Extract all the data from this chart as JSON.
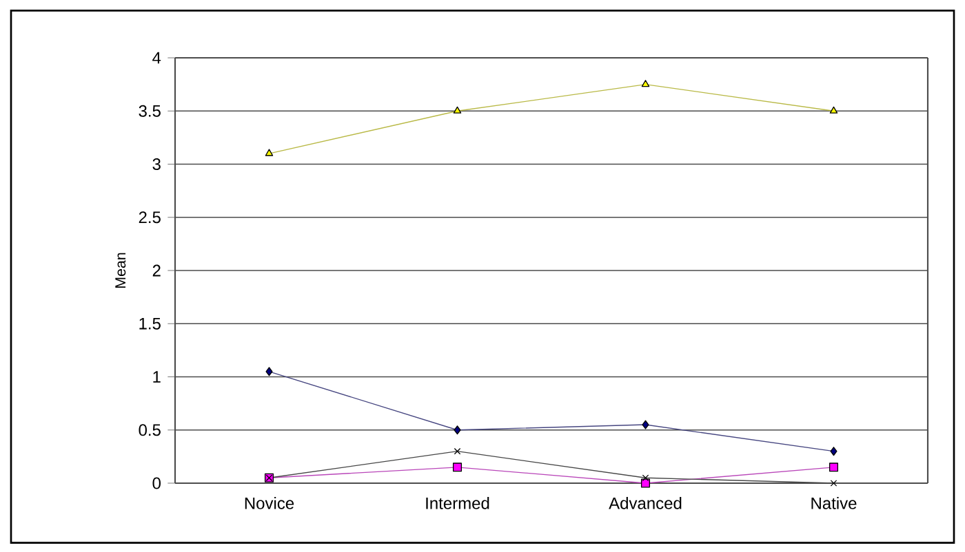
{
  "chart_data": {
    "type": "line",
    "ylabel": "Mean",
    "categories": [
      "Novice",
      "Intermed",
      "Advanced",
      "Native"
    ],
    "series": [
      {
        "color": "#000080",
        "marker": "diamond",
        "values": [
          1.05,
          0.5,
          0.55,
          0.3
        ]
      },
      {
        "color": "#ff00ff",
        "marker": "square",
        "values": [
          0.05,
          0.15,
          0,
          0.15
        ]
      },
      {
        "color": "#ffff00",
        "marker": "triangle",
        "values": [
          3.1,
          3.5,
          3.75,
          3.5
        ]
      },
      {
        "color": "#000000",
        "marker": "cross",
        "values": [
          0.05,
          0.3,
          0.05,
          0
        ]
      }
    ],
    "ylim": [
      0,
      4
    ],
    "yticks": [
      0,
      0.5,
      1,
      1.5,
      2,
      2.5,
      3,
      3.5,
      4
    ],
    "grid": "y"
  }
}
